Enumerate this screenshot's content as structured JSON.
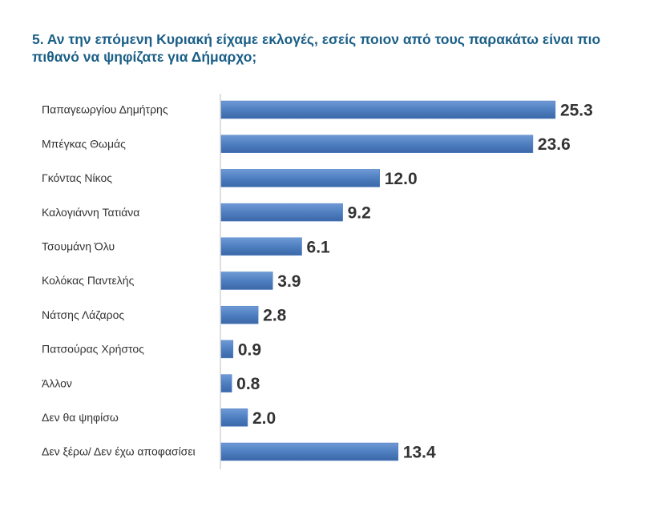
{
  "chart_data": {
    "type": "bar",
    "orientation": "horizontal",
    "title": "5.   Αν την επόμενη Κυριακή είχαμε εκλογές, εσείς ποιον από τους παρακάτω είναι πιο πιθανό να ψηφίζατε για Δήμαρχο;",
    "categories": [
      "Παπαγεωργίου Δημήτρης",
      "Μπέγκας Θωμάς",
      "Γκόντας Νίκος",
      "Καλογιάννη Τατιάνα",
      "Τσουμάνη Όλυ",
      "Κολόκας Παντελής",
      "Νάτσης Λάζαρος",
      "Πατσούρας Χρήστος",
      "Άλλον",
      "Δεν θα ψηφίσω",
      "Δεν ξέρω/ Δεν έχω αποφασίσει"
    ],
    "values": [
      25.3,
      23.6,
      12.0,
      9.2,
      6.1,
      3.9,
      2.8,
      0.9,
      0.8,
      2.0,
      13.4
    ],
    "value_labels": [
      "25.3",
      "23.6",
      "12.0",
      "9.2",
      "6.1",
      "3.9",
      "2.8",
      "0.9",
      "0.8",
      "2.0",
      "13.4"
    ],
    "color": "#4f7fc0"
  }
}
